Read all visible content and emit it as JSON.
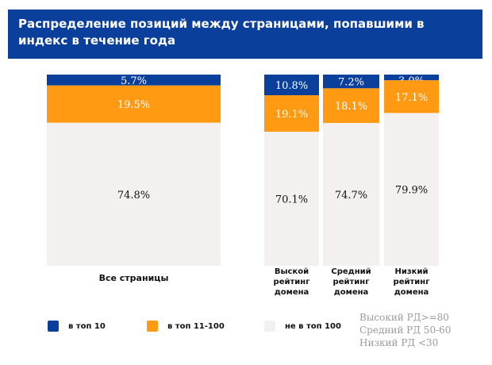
{
  "chart_data": {
    "type": "bar",
    "stacked": true,
    "title": "Распределение позиций между страницами, попавшими в индекс в течение года",
    "categories": [
      "Все страницы",
      "Выской рейтинг домена",
      "Средний рейтинг домена",
      "Низкий рейтинг домена"
    ],
    "series": [
      {
        "name": "в топ 10",
        "color": "#0b3f9c",
        "values": [
          5.7,
          10.8,
          7.2,
          3.0
        ],
        "labels": [
          "5.7%",
          "10.8%",
          "7.2%",
          "3.0%"
        ]
      },
      {
        "name": "в топ 11-100",
        "color": "#ff9a12",
        "values": [
          19.5,
          19.1,
          18.1,
          17.1
        ],
        "labels": [
          "19.5%",
          "19.1%",
          "18.1%",
          "17.1%"
        ]
      },
      {
        "name": "не в топ 100",
        "color": "#f3f0ef",
        "values": [
          74.8,
          70.1,
          74.7,
          79.9
        ],
        "labels": [
          "74.8%",
          "70.1%",
          "74.7%",
          "79.9%"
        ]
      }
    ],
    "notes": [
      "Высокий РД>=80",
      "Средний РД 50-60",
      "Низкий РД <30"
    ],
    "ylim": [
      0,
      100
    ]
  }
}
